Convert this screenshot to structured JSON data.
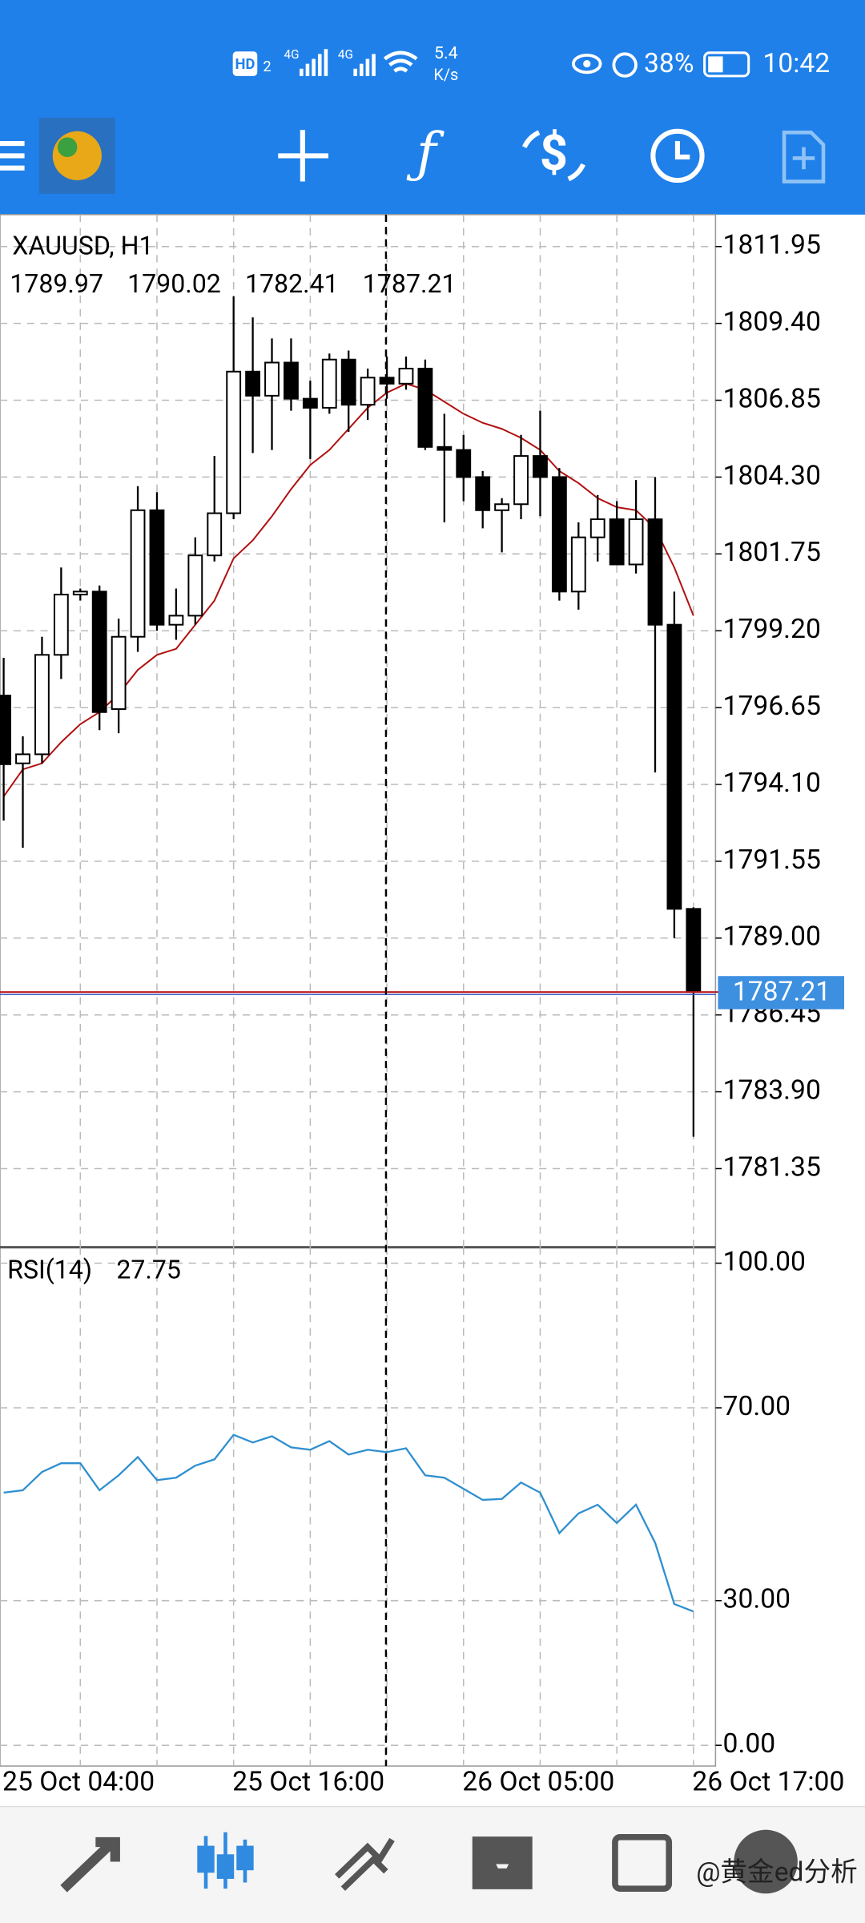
{
  "status_bar": {
    "hd": "HD",
    "sim": "2",
    "network": "4G",
    "speed": "5.4",
    "speed_unit": "K/s",
    "battery": "38%",
    "time": "10:42"
  },
  "chart_data": [
    {
      "type": "candlestick",
      "title": "XAUUSD, H1",
      "categories": [
        "25 Oct 04:00",
        null,
        null,
        null,
        null,
        null,
        null,
        null,
        null,
        null,
        null,
        null,
        "25 Oct 16:00",
        null,
        null,
        null,
        null,
        null,
        null,
        null,
        null,
        null,
        null,
        null,
        "26 Oct 05:00",
        null,
        null,
        null,
        null,
        null,
        null,
        null,
        null,
        null,
        null,
        null,
        "26 Oct 17:00"
      ],
      "open": [
        1797.05,
        1794.8,
        1795.1,
        1798.4,
        1800.4,
        1800.5,
        1796.6,
        1799.0,
        1803.2,
        1799.4,
        1799.7,
        1801.7,
        1803.1,
        1807.8,
        1807.0,
        1808.1,
        1806.9,
        1806.6,
        1808.2,
        1806.7,
        1807.6,
        1807.4,
        1807.9,
        1805.3,
        1805.2,
        1804.3,
        1803.2,
        1803.4,
        1805.0,
        1804.3,
        1800.5,
        1802.3,
        1802.9,
        1801.4,
        1802.9,
        1799.4,
        1789.97
      ],
      "high": [
        1798.3,
        1795.7,
        1799.0,
        1801.3,
        1800.6,
        1800.7,
        1799.6,
        1804.0,
        1803.8,
        1800.6,
        1802.3,
        1805.0,
        1810.3,
        1809.6,
        1808.9,
        1808.9,
        1807.5,
        1808.4,
        1808.5,
        1807.9,
        1808.3,
        1808.3,
        1808.2,
        1806.4,
        1805.7,
        1804.5,
        1803.6,
        1805.7,
        1806.5,
        1804.6,
        1802.8,
        1803.7,
        1803.5,
        1804.2,
        1804.3,
        1800.5,
        1790.02
      ],
      "low": [
        1792.9,
        1792.0,
        1794.8,
        1797.6,
        1800.2,
        1795.9,
        1795.8,
        1798.5,
        1799.2,
        1798.9,
        1799.4,
        1801.5,
        1802.9,
        1805.1,
        1805.2,
        1806.5,
        1804.9,
        1806.4,
        1805.8,
        1806.2,
        1806.9,
        1807.2,
        1805.2,
        1802.8,
        1803.5,
        1802.6,
        1801.8,
        1802.9,
        1803.0,
        1800.2,
        1799.9,
        1801.5,
        1801.4,
        1801.1,
        1794.5,
        1789.0,
        1782.41
      ],
      "close": [
        1794.77,
        1795.1,
        1798.4,
        1800.4,
        1800.5,
        1796.5,
        1799.0,
        1803.2,
        1799.4,
        1799.7,
        1801.7,
        1803.1,
        1807.8,
        1807.0,
        1808.1,
        1806.9,
        1806.6,
        1808.2,
        1806.7,
        1807.6,
        1807.4,
        1807.9,
        1805.3,
        1805.2,
        1804.3,
        1803.2,
        1803.4,
        1805.0,
        1804.3,
        1800.5,
        1802.3,
        1802.9,
        1801.4,
        1802.9,
        1799.4,
        1789.97,
        1787.21
      ],
      "up_color": "#ffffff",
      "down_color": "#000000",
      "overlay": {
        "color": "#b01010",
        "values": [
          1793.7,
          1794.6,
          1794.8,
          1795.5,
          1796.1,
          1796.5,
          1797.1,
          1797.9,
          1798.4,
          1798.6,
          1799.4,
          1800.2,
          1801.6,
          1802.2,
          1803.0,
          1803.9,
          1804.7,
          1805.2,
          1805.9,
          1806.6,
          1807.1,
          1807.4,
          1807.2,
          1806.8,
          1806.4,
          1806.1,
          1805.9,
          1805.6,
          1805.2,
          1804.5,
          1804.1,
          1803.6,
          1803.3,
          1803.2,
          1802.6,
          1801.3,
          1799.7
        ]
      },
      "ylim": [
        1778.74,
        1813.01
      ],
      "yticks": [
        1811.95,
        {
          "value": 1809.4,
          "label": "1809.40"
        },
        1806.85,
        {
          "value": 1804.3,
          "label": "1804.30"
        },
        1801.75,
        {
          "value": 1799.2,
          "label": "1799.20"
        },
        1796.65,
        {
          "value": 1794.1,
          "label": "1794.10"
        },
        1791.55,
        {
          "value": 1789,
          "label": "1789.00"
        },
        1786.45,
        {
          "value": 1783.9,
          "label": "1783.90"
        },
        1781.35
      ],
      "grid": true
    },
    {
      "type": "line",
      "title": "RSI(14)",
      "color": "#2f8fd0",
      "values": [
        52.4,
        52.9,
        56.7,
        58.5,
        58.5,
        52.9,
        56.0,
        59.8,
        55.0,
        55.5,
        58.0,
        59.3,
        64.4,
        62.8,
        64.1,
        61.8,
        61.3,
        63.1,
        60.3,
        61.3,
        60.8,
        61.6,
        56.0,
        55.5,
        53.2,
        50.9,
        51.1,
        54.5,
        52.4,
        44.0,
        48.1,
        49.9,
        46.1,
        49.9,
        42.0,
        29.3,
        27.75
      ],
      "ylim": [
        -4.3,
        103.3
      ],
      "yticks": [
        {
          "value": 100,
          "label": "100.00"
        },
        {
          "value": 70,
          "label": "70.00"
        },
        {
          "value": 30,
          "label": "30.00"
        },
        {
          "value": 0,
          "label": "0.00"
        }
      ],
      "grid": true
    }
  ],
  "watermark": "@黄金ed分析"
}
